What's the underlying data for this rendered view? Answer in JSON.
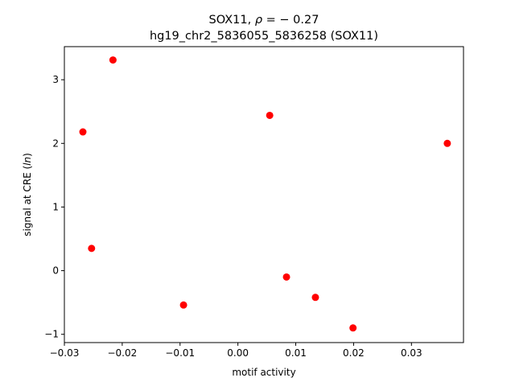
{
  "chart_data": {
    "type": "scatter",
    "title_line1_text": "SOX11, ",
    "title_line1_rho": "ρ",
    "title_line1_rest": " = − 0.27",
    "title_line2": "hg19_chr2_5836055_5836258 (SOX11)",
    "xlabel": "motif activity",
    "ylabel_prefix": "signal at CRE (",
    "ylabel_italic": "ln",
    "ylabel_suffix": ")",
    "xlim": [
      -0.03,
      0.039
    ],
    "ylim": [
      -1.13,
      3.52
    ],
    "xticks": [
      -0.03,
      -0.02,
      -0.01,
      0.0,
      0.01,
      0.02,
      0.03
    ],
    "xtick_labels": [
      "−0.03",
      "−0.02",
      "−0.01",
      "0.00",
      "0.01",
      "0.02",
      "0.03"
    ],
    "yticks": [
      -1,
      0,
      1,
      2,
      3
    ],
    "ytick_labels": [
      "−1",
      "0",
      "1",
      "2",
      "3"
    ],
    "grid": false,
    "marker_color": "#ff0000",
    "points": [
      {
        "x": -0.0268,
        "y": 2.18
      },
      {
        "x": -0.0253,
        "y": 0.35
      },
      {
        "x": -0.0216,
        "y": 3.31
      },
      {
        "x": -0.0094,
        "y": -0.54
      },
      {
        "x": 0.0055,
        "y": 2.44
      },
      {
        "x": 0.0084,
        "y": -0.1
      },
      {
        "x": 0.0134,
        "y": -0.42
      },
      {
        "x": 0.0199,
        "y": -0.9
      },
      {
        "x": 0.0362,
        "y": 2.0
      }
    ]
  }
}
